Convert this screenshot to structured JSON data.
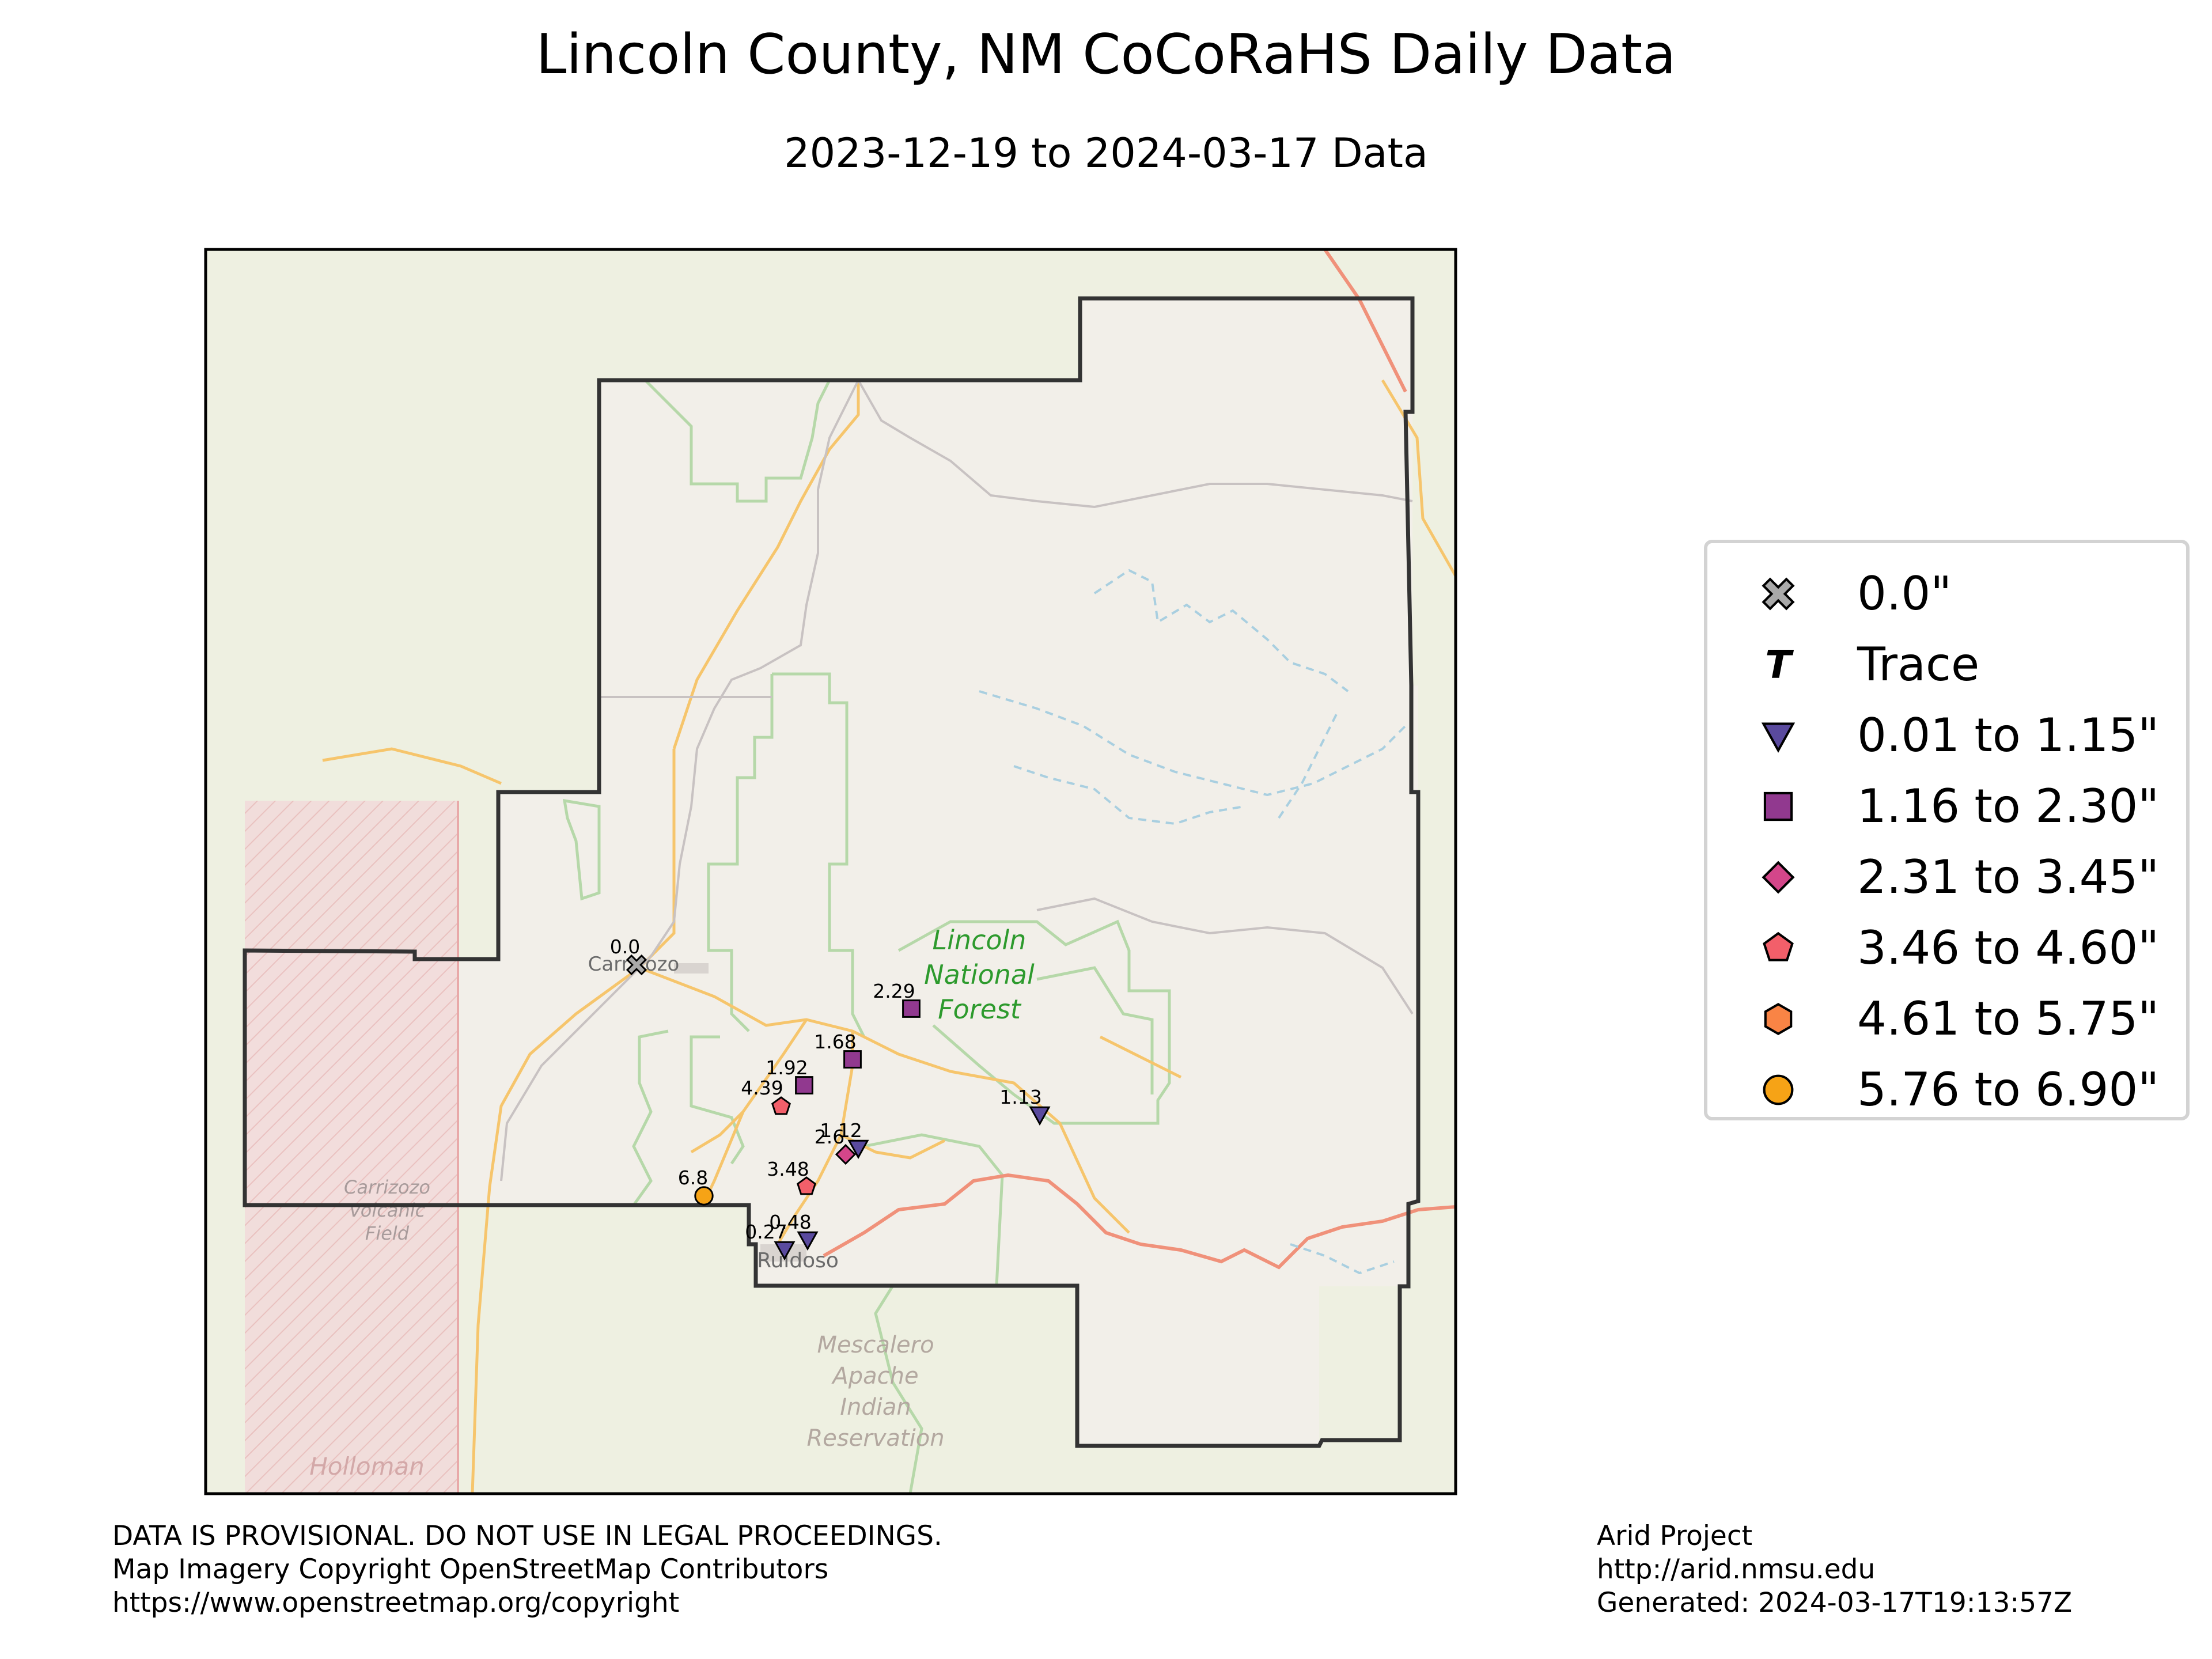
{
  "title": "Lincoln County, NM CoCoRaHS Daily Data",
  "subtitle": "2023-12-19 to 2024-03-17 Data",
  "map_labels": {
    "forest": [
      "Lincoln",
      "National",
      "Forest"
    ],
    "town_carrizozo": "Carrizozo",
    "town_ruidoso": "Ruidoso",
    "volcanic": [
      "Carrizozo",
      "Volcanic",
      "Field"
    ],
    "reservation": [
      "Mescalero",
      "Apache",
      "Indian",
      "Reservation"
    ],
    "holloman": "Holloman"
  },
  "stations": [
    {
      "label": "0.0",
      "value": 0.0,
      "cls": "zero"
    },
    {
      "label": "2.29",
      "value": 2.29,
      "cls": "c2"
    },
    {
      "label": "1.68",
      "value": 1.68,
      "cls": "c2"
    },
    {
      "label": "1.92",
      "value": 1.92,
      "cls": "c2"
    },
    {
      "label": "4.39",
      "value": 4.39,
      "cls": "c4"
    },
    {
      "label": "1.13",
      "value": 1.13,
      "cls": "c1"
    },
    {
      "label": "1.12",
      "value": 1.12,
      "cls": "c1"
    },
    {
      "label": "2.6",
      "value": 2.6,
      "cls": "c3"
    },
    {
      "label": "3.48",
      "value": 3.48,
      "cls": "c4"
    },
    {
      "label": "6.8",
      "value": 6.8,
      "cls": "c6"
    },
    {
      "label": "0.48",
      "value": 0.48,
      "cls": "c1"
    },
    {
      "label": "0.27",
      "value": 0.27,
      "cls": "c1"
    }
  ],
  "legend": {
    "items": [
      {
        "cls": "zero",
        "label": "0.0\"",
        "color": "#a9a9a9",
        "icon": "cross-icon"
      },
      {
        "cls": "trace",
        "label": "Trace",
        "color": "#000000",
        "icon": "trace-t-icon"
      },
      {
        "cls": "c1",
        "label": "0.01 to 1.15\"",
        "color": "#5a4a9e",
        "icon": "triangle-down-icon"
      },
      {
        "cls": "c2",
        "label": "1.16 to 2.30\"",
        "color": "#91398f",
        "icon": "square-icon"
      },
      {
        "cls": "c3",
        "label": "2.31 to 3.45\"",
        "color": "#d4468a",
        "icon": "diamond-icon"
      },
      {
        "cls": "c4",
        "label": "3.46 to 4.60\"",
        "color": "#f25f6a",
        "icon": "pentagon-icon"
      },
      {
        "cls": "c5",
        "label": "4.61 to 5.75\"",
        "color": "#f98445",
        "icon": "hexagon-icon"
      },
      {
        "cls": "c6",
        "label": "5.76 to 6.90\"",
        "color": "#f6a316",
        "icon": "circle-icon"
      }
    ]
  },
  "footer": {
    "left": [
      "DATA IS PROVISIONAL. DO NOT USE IN LEGAL PROCEEDINGS.",
      "Map Imagery Copyright OpenStreetMap Contributors",
      "https://www.openstreetmap.org/copyright"
    ],
    "right": [
      "Arid Project",
      "http://arid.nmsu.edu",
      "Generated: 2024-03-17T19:13:57Z"
    ]
  }
}
